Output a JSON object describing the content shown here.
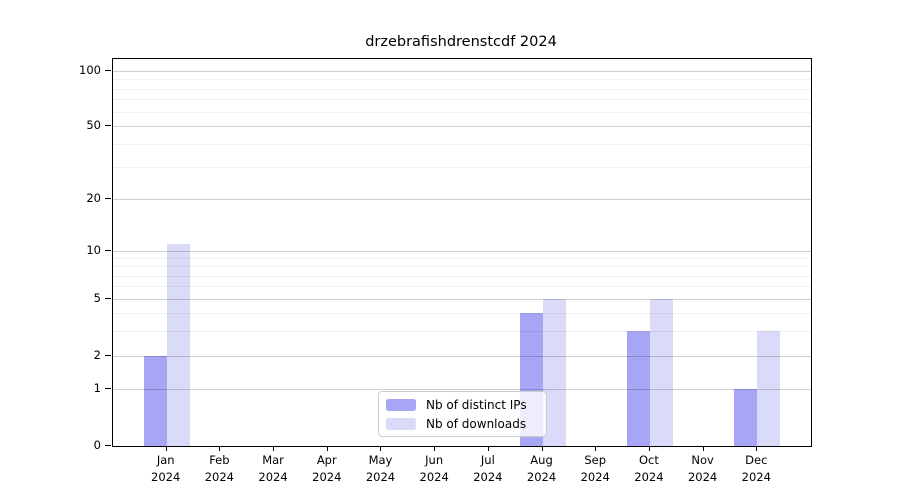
{
  "title": "drzebrafishdrenstcdf 2024",
  "chart_data": {
    "type": "bar",
    "title": "drzebrafishdrenstcdf 2024",
    "categories": [
      "Jan 2024",
      "Feb 2024",
      "Mar 2024",
      "Apr 2024",
      "May 2024",
      "Jun 2024",
      "Jul 2024",
      "Aug 2024",
      "Sep 2024",
      "Oct 2024",
      "Nov 2024",
      "Dec 2024"
    ],
    "x_tick_top_lines": [
      "Jan",
      "Feb",
      "Mar",
      "Apr",
      "May",
      "Jun",
      "Jul",
      "Aug",
      "Sep",
      "Oct",
      "Nov",
      "Dec"
    ],
    "x_tick_bottom_line": "2024",
    "series": [
      {
        "name": "Nb of distinct IPs",
        "color": "#a6a6f4",
        "values": [
          2,
          0,
          0,
          0,
          0,
          0,
          0,
          4,
          0,
          3,
          0,
          1
        ]
      },
      {
        "name": "Nb of downloads",
        "color": "#dadaf9",
        "values": [
          11,
          0,
          0,
          0,
          0,
          0,
          0,
          5,
          0,
          5,
          0,
          3
        ]
      }
    ],
    "y_ticks": [
      0,
      1,
      2,
      5,
      10,
      20,
      50,
      100
    ],
    "y_minor_gridlines": [
      3,
      4,
      6,
      7,
      8,
      9,
      30,
      40,
      60,
      70,
      80,
      90
    ],
    "y_scale": "symlog",
    "ylim": [
      0,
      117
    ],
    "xlabel": "",
    "ylabel": "",
    "grid": "horizontal major+minor",
    "legend_position": "lower center"
  },
  "colors": {
    "distinct_ips": "#a6a6f4",
    "downloads": "#dadaf9",
    "axis": "#000000",
    "grid_major": "rgba(0,0,0,0.18)",
    "grid_minor": "rgba(0,0,0,0.06)"
  }
}
